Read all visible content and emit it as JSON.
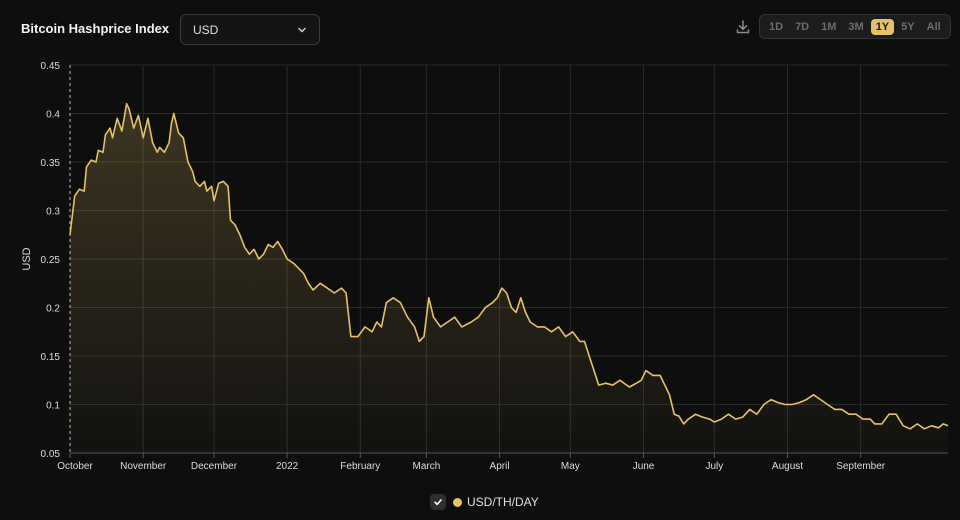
{
  "header": {
    "title": "Bitcoin Hashprice Index",
    "currency": {
      "value": "USD"
    },
    "ranges": [
      "1D",
      "7D",
      "1M",
      "3M",
      "1Y",
      "5Y",
      "All"
    ],
    "active_range": "1Y"
  },
  "colors": {
    "line": "#e6c267",
    "grid": "#2a2a2a",
    "axis_text": "#dcdcdc",
    "background": "#0e0e0e"
  },
  "icons": {
    "download": "download-icon",
    "chevron": "chevron-down-icon",
    "check": "check-icon"
  },
  "legend": {
    "label": "USD/TH/DAY"
  },
  "chart_data": {
    "type": "area",
    "ylabel": "USD",
    "ylim": [
      0.05,
      0.45
    ],
    "yticks": [
      0.05,
      0.1,
      0.15,
      0.2,
      0.25,
      0.3,
      0.35,
      0.4,
      0.45
    ],
    "ytick_labels": [
      "0.05",
      "0.1",
      "0.15",
      "0.2",
      "0.25",
      "0.3",
      "0.35",
      "0.4",
      "0.45"
    ],
    "xlim": [
      "2021-10-01",
      "2022-10-08"
    ],
    "xticks": [
      "2021-10-01",
      "2021-11-01",
      "2021-12-01",
      "2022-01-01",
      "2022-02-01",
      "2022-03-01",
      "2022-04-01",
      "2022-05-01",
      "2022-06-01",
      "2022-07-01",
      "2022-08-01",
      "2022-09-01"
    ],
    "xtick_labels": [
      "October",
      "November",
      "December",
      "2022",
      "February",
      "March",
      "April",
      "May",
      "June",
      "July",
      "August",
      "September"
    ],
    "grid": true,
    "legend_position": "bottom-center",
    "series": [
      {
        "name": "USD/TH/DAY",
        "points": [
          [
            "2021-10-01",
            0.275
          ],
          [
            "2021-10-03",
            0.315
          ],
          [
            "2021-10-05",
            0.322
          ],
          [
            "2021-10-07",
            0.32
          ],
          [
            "2021-10-08",
            0.345
          ],
          [
            "2021-10-10",
            0.352
          ],
          [
            "2021-10-12",
            0.35
          ],
          [
            "2021-10-13",
            0.362
          ],
          [
            "2021-10-15",
            0.36
          ],
          [
            "2021-10-16",
            0.378
          ],
          [
            "2021-10-18",
            0.385
          ],
          [
            "2021-10-19",
            0.375
          ],
          [
            "2021-10-21",
            0.395
          ],
          [
            "2021-10-23",
            0.382
          ],
          [
            "2021-10-25",
            0.41
          ],
          [
            "2021-10-26",
            0.405
          ],
          [
            "2021-10-28",
            0.385
          ],
          [
            "2021-10-30",
            0.398
          ],
          [
            "2021-11-01",
            0.375
          ],
          [
            "2021-11-03",
            0.395
          ],
          [
            "2021-11-05",
            0.37
          ],
          [
            "2021-11-07",
            0.36
          ],
          [
            "2021-11-08",
            0.365
          ],
          [
            "2021-11-10",
            0.36
          ],
          [
            "2021-11-12",
            0.37
          ],
          [
            "2021-11-13",
            0.39
          ],
          [
            "2021-11-14",
            0.4
          ],
          [
            "2021-11-16",
            0.38
          ],
          [
            "2021-11-18",
            0.375
          ],
          [
            "2021-11-20",
            0.35
          ],
          [
            "2021-11-22",
            0.34
          ],
          [
            "2021-11-23",
            0.33
          ],
          [
            "2021-11-25",
            0.325
          ],
          [
            "2021-11-27",
            0.33
          ],
          [
            "2021-11-28",
            0.32
          ],
          [
            "2021-11-30",
            0.325
          ],
          [
            "2021-12-01",
            0.31
          ],
          [
            "2021-12-03",
            0.328
          ],
          [
            "2021-12-05",
            0.33
          ],
          [
            "2021-12-07",
            0.325
          ],
          [
            "2021-12-08",
            0.29
          ],
          [
            "2021-12-10",
            0.285
          ],
          [
            "2021-12-12",
            0.275
          ],
          [
            "2021-12-14",
            0.262
          ],
          [
            "2021-12-16",
            0.255
          ],
          [
            "2021-12-18",
            0.26
          ],
          [
            "2021-12-20",
            0.25
          ],
          [
            "2021-12-22",
            0.255
          ],
          [
            "2021-12-24",
            0.265
          ],
          [
            "2021-12-26",
            0.262
          ],
          [
            "2021-12-28",
            0.268
          ],
          [
            "2021-12-30",
            0.26
          ],
          [
            "2022-01-01",
            0.25
          ],
          [
            "2022-01-04",
            0.245
          ],
          [
            "2022-01-06",
            0.24
          ],
          [
            "2022-01-08",
            0.235
          ],
          [
            "2022-01-10",
            0.225
          ],
          [
            "2022-01-12",
            0.218
          ],
          [
            "2022-01-15",
            0.225
          ],
          [
            "2022-01-18",
            0.22
          ],
          [
            "2022-01-21",
            0.215
          ],
          [
            "2022-01-24",
            0.22
          ],
          [
            "2022-01-26",
            0.215
          ],
          [
            "2022-01-28",
            0.17
          ],
          [
            "2022-01-31",
            0.17
          ],
          [
            "2022-02-03",
            0.18
          ],
          [
            "2022-02-06",
            0.175
          ],
          [
            "2022-02-08",
            0.185
          ],
          [
            "2022-02-10",
            0.18
          ],
          [
            "2022-02-12",
            0.205
          ],
          [
            "2022-02-15",
            0.21
          ],
          [
            "2022-02-18",
            0.205
          ],
          [
            "2022-02-21",
            0.19
          ],
          [
            "2022-02-24",
            0.18
          ],
          [
            "2022-02-26",
            0.165
          ],
          [
            "2022-02-28",
            0.17
          ],
          [
            "2022-03-02",
            0.21
          ],
          [
            "2022-03-04",
            0.19
          ],
          [
            "2022-03-07",
            0.18
          ],
          [
            "2022-03-10",
            0.185
          ],
          [
            "2022-03-13",
            0.19
          ],
          [
            "2022-03-16",
            0.18
          ],
          [
            "2022-03-20",
            0.185
          ],
          [
            "2022-03-23",
            0.19
          ],
          [
            "2022-03-26",
            0.2
          ],
          [
            "2022-03-29",
            0.205
          ],
          [
            "2022-03-31",
            0.21
          ],
          [
            "2022-04-02",
            0.22
          ],
          [
            "2022-04-04",
            0.215
          ],
          [
            "2022-04-06",
            0.2
          ],
          [
            "2022-04-08",
            0.195
          ],
          [
            "2022-04-10",
            0.21
          ],
          [
            "2022-04-12",
            0.195
          ],
          [
            "2022-04-14",
            0.185
          ],
          [
            "2022-04-17",
            0.18
          ],
          [
            "2022-04-20",
            0.18
          ],
          [
            "2022-04-23",
            0.175
          ],
          [
            "2022-04-26",
            0.18
          ],
          [
            "2022-04-29",
            0.17
          ],
          [
            "2022-05-02",
            0.175
          ],
          [
            "2022-05-05",
            0.165
          ],
          [
            "2022-05-07",
            0.165
          ],
          [
            "2022-05-09",
            0.15
          ],
          [
            "2022-05-11",
            0.135
          ],
          [
            "2022-05-13",
            0.12
          ],
          [
            "2022-05-16",
            0.122
          ],
          [
            "2022-05-19",
            0.12
          ],
          [
            "2022-05-22",
            0.125
          ],
          [
            "2022-05-26",
            0.118
          ],
          [
            "2022-05-29",
            0.122
          ],
          [
            "2022-05-31",
            0.125
          ],
          [
            "2022-06-02",
            0.135
          ],
          [
            "2022-06-05",
            0.13
          ],
          [
            "2022-06-08",
            0.13
          ],
          [
            "2022-06-10",
            0.12
          ],
          [
            "2022-06-12",
            0.11
          ],
          [
            "2022-06-14",
            0.09
          ],
          [
            "2022-06-16",
            0.088
          ],
          [
            "2022-06-18",
            0.08
          ],
          [
            "2022-06-20",
            0.085
          ],
          [
            "2022-06-23",
            0.09
          ],
          [
            "2022-06-26",
            0.087
          ],
          [
            "2022-06-29",
            0.085
          ],
          [
            "2022-07-01",
            0.082
          ],
          [
            "2022-07-04",
            0.085
          ],
          [
            "2022-07-07",
            0.09
          ],
          [
            "2022-07-10",
            0.085
          ],
          [
            "2022-07-13",
            0.087
          ],
          [
            "2022-07-16",
            0.095
          ],
          [
            "2022-07-19",
            0.09
          ],
          [
            "2022-07-22",
            0.1
          ],
          [
            "2022-07-25",
            0.105
          ],
          [
            "2022-07-28",
            0.102
          ],
          [
            "2022-07-31",
            0.1
          ],
          [
            "2022-08-03",
            0.1
          ],
          [
            "2022-08-06",
            0.102
          ],
          [
            "2022-08-09",
            0.105
          ],
          [
            "2022-08-12",
            0.11
          ],
          [
            "2022-08-15",
            0.105
          ],
          [
            "2022-08-18",
            0.1
          ],
          [
            "2022-08-21",
            0.095
          ],
          [
            "2022-08-24",
            0.095
          ],
          [
            "2022-08-27",
            0.09
          ],
          [
            "2022-08-30",
            0.09
          ],
          [
            "2022-09-02",
            0.085
          ],
          [
            "2022-09-05",
            0.085
          ],
          [
            "2022-09-07",
            0.08
          ],
          [
            "2022-09-10",
            0.08
          ],
          [
            "2022-09-13",
            0.09
          ],
          [
            "2022-09-16",
            0.09
          ],
          [
            "2022-09-19",
            0.078
          ],
          [
            "2022-09-22",
            0.075
          ],
          [
            "2022-09-25",
            0.08
          ],
          [
            "2022-09-28",
            0.075
          ],
          [
            "2022-10-01",
            0.078
          ],
          [
            "2022-10-04",
            0.076
          ],
          [
            "2022-10-06",
            0.08
          ],
          [
            "2022-10-08",
            0.078
          ]
        ]
      }
    ]
  }
}
